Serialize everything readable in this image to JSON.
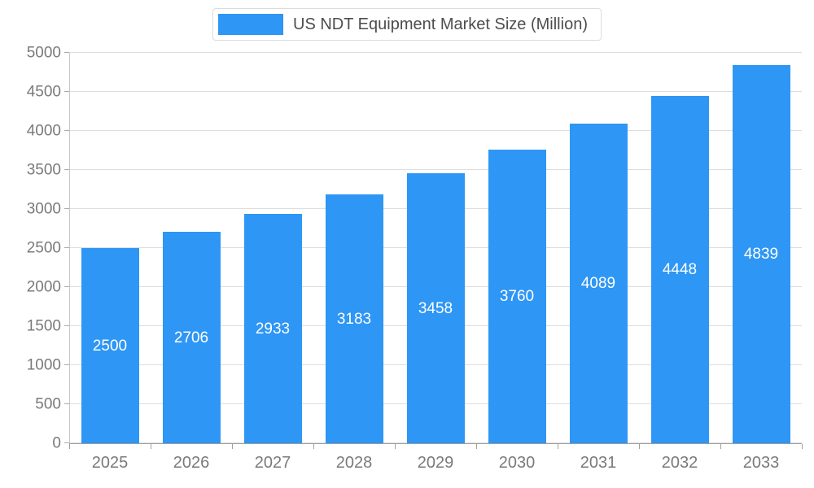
{
  "chart_data": {
    "type": "bar",
    "title": "US NDT Equipment Market Size (Million)",
    "categories": [
      "2025",
      "2026",
      "2027",
      "2028",
      "2029",
      "2030",
      "2031",
      "2032",
      "2033"
    ],
    "values": [
      2500,
      2706,
      2933,
      3183,
      3458,
      3760,
      4089,
      4448,
      4839
    ],
    "xlabel": "",
    "ylabel": "",
    "ylim": [
      0,
      5000
    ],
    "y_ticks": [
      0,
      500,
      1000,
      1500,
      2000,
      2500,
      3000,
      3500,
      4000,
      4500,
      5000
    ],
    "grid": true,
    "legend_position": "top",
    "bar_color": "#2e96f5",
    "bar_label_color": "#ffffff",
    "axis_text_color": "#7a7a7a",
    "gridline_color": "#dddddd",
    "legend_text_color": "#4d4d4d"
  }
}
